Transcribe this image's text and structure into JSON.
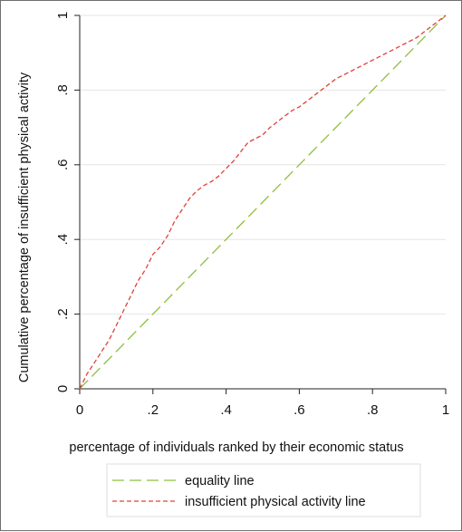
{
  "chart_data": {
    "type": "line",
    "xlabel": "percentage of individuals ranked by their economic status",
    "ylabel": "Cumulative percentage of insufficient physical activity",
    "xlim": [
      0,
      1
    ],
    "ylim": [
      0,
      1
    ],
    "x_ticks": [
      {
        "value": 0,
        "label": "0"
      },
      {
        "value": 0.2,
        "label": ".2"
      },
      {
        "value": 0.4,
        "label": ".4"
      },
      {
        "value": 0.6,
        "label": ".6"
      },
      {
        "value": 0.8,
        "label": ".8"
      },
      {
        "value": 1,
        "label": "1"
      }
    ],
    "y_ticks": [
      {
        "value": 0,
        "label": "0"
      },
      {
        "value": 0.2,
        "label": ".2"
      },
      {
        "value": 0.4,
        "label": ".4"
      },
      {
        "value": 0.6,
        "label": ".6"
      },
      {
        "value": 0.8,
        "label": ".8"
      },
      {
        "value": 1,
        "label": "1"
      }
    ],
    "grid": "horizontal",
    "legend_position": "bottom",
    "series": [
      {
        "name": "equality line",
        "color": "#8fbf3f",
        "dash": "long-dash",
        "x": [
          0,
          1
        ],
        "y": [
          0,
          1
        ]
      },
      {
        "name": "insufficient physical activity line",
        "color": "#e0403a",
        "dash": "short-dash",
        "x": [
          0,
          0.02,
          0.04,
          0.06,
          0.08,
          0.1,
          0.12,
          0.14,
          0.16,
          0.18,
          0.2,
          0.22,
          0.24,
          0.26,
          0.28,
          0.3,
          0.32,
          0.34,
          0.36,
          0.38,
          0.4,
          0.42,
          0.44,
          0.46,
          0.48,
          0.5,
          0.52,
          0.54,
          0.56,
          0.58,
          0.6,
          0.62,
          0.64,
          0.66,
          0.68,
          0.7,
          0.72,
          0.74,
          0.76,
          0.78,
          0.8,
          0.82,
          0.84,
          0.86,
          0.88,
          0.9,
          0.92,
          0.94,
          0.96,
          0.98,
          1.0
        ],
        "y": [
          0,
          0.04,
          0.07,
          0.1,
          0.13,
          0.17,
          0.21,
          0.25,
          0.29,
          0.32,
          0.36,
          0.38,
          0.41,
          0.45,
          0.48,
          0.51,
          0.53,
          0.545,
          0.555,
          0.57,
          0.59,
          0.61,
          0.635,
          0.66,
          0.67,
          0.68,
          0.7,
          0.715,
          0.73,
          0.745,
          0.755,
          0.77,
          0.785,
          0.8,
          0.815,
          0.83,
          0.84,
          0.85,
          0.86,
          0.87,
          0.88,
          0.89,
          0.9,
          0.91,
          0.92,
          0.93,
          0.94,
          0.955,
          0.97,
          0.985,
          1.0
        ]
      }
    ]
  }
}
